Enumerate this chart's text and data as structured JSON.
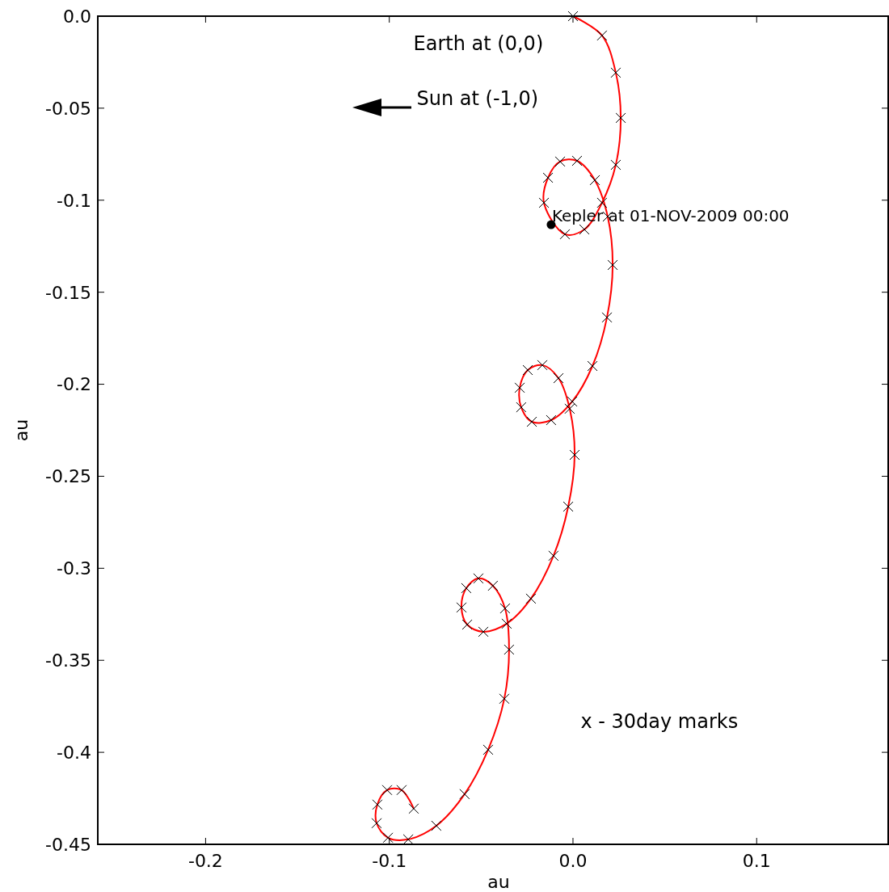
{
  "chart_data": {
    "type": "line",
    "xlabel": "au",
    "ylabel": "au",
    "xlim": [
      -0.2587,
      0.1716
    ],
    "ylim": [
      -0.45,
      0
    ],
    "xticks": [
      -0.2,
      -0.1,
      {
        "value": 0,
        "label": "0.0"
      },
      0.1
    ],
    "yticks": [
      {
        "value": 0,
        "label": "0.0"
      },
      -0.05,
      -0.1,
      -0.15,
      -0.2,
      -0.25,
      -0.3,
      -0.35,
      -0.4,
      -0.45
    ],
    "grid": false,
    "series": [
      {
        "color": "#ff0000",
        "marker": "none",
        "x": [
          0,
          0.0158,
          0.0233,
          0.026,
          0.0233,
          0.0158,
          0.0062,
          -0.0044,
          -0.0158,
          -0.0136,
          -0.007,
          0.0022,
          0.0119,
          0.0189,
          0.0216,
          0.0185,
          0.0106,
          -0.0004,
          -0.0119,
          -0.0224,
          -0.0282,
          -0.029,
          -0.0246,
          -0.0167,
          -0.0079,
          -0.0018,
          0.0009,
          -0.0026,
          -0.0106,
          -0.0229,
          -0.0361,
          -0.0488,
          -0.0576,
          -0.0607,
          -0.0581,
          -0.0515,
          -0.0436,
          -0.037,
          -0.0348,
          -0.0374,
          -0.0462,
          -0.059,
          -0.0744,
          -0.0897,
          -0.1007,
          -0.1069,
          -0.1065,
          -0.1012,
          -0.0933,
          -0.0867
        ],
        "values": [
          0,
          -0.0105,
          -0.0307,
          -0.0553,
          -0.0808,
          -0.1014,
          -0.1159,
          -0.1185,
          -0.1014,
          -0.0878,
          -0.079,
          -0.0786,
          -0.0891,
          -0.1089,
          -0.1352,
          -0.1637,
          -0.1901,
          -0.2094,
          -0.2195,
          -0.2204,
          -0.2125,
          -0.2019,
          -0.1923,
          -0.1896,
          -0.1967,
          -0.2133,
          -0.2384,
          -0.2665,
          -0.2932,
          -0.3165,
          -0.3301,
          -0.3345,
          -0.3306,
          -0.3213,
          -0.3108,
          -0.3055,
          -0.3095,
          -0.3218,
          -0.3442,
          -0.3709,
          -0.3986,
          -0.4227,
          -0.4399,
          -0.4473,
          -0.4464,
          -0.4385,
          -0.4284,
          -0.4205,
          -0.4205,
          -0.4306
        ]
      },
      {
        "type": "scatter",
        "color": "#000000",
        "marker": "cross",
        "x": [
          0,
          0.0158,
          0.0233,
          0.026,
          0.0233,
          0.0158,
          0.0062,
          -0.0044,
          -0.0158,
          -0.0136,
          -0.007,
          0.0022,
          0.0119,
          0.0189,
          0.0216,
          0.0185,
          0.0106,
          -0.0004,
          -0.0119,
          -0.0224,
          -0.0282,
          -0.029,
          -0.0246,
          -0.0167,
          -0.0079,
          -0.0018,
          0.0009,
          -0.0026,
          -0.0106,
          -0.0229,
          -0.0361,
          -0.0488,
          -0.0576,
          -0.0607,
          -0.0581,
          -0.0515,
          -0.0436,
          -0.037,
          -0.0348,
          -0.0374,
          -0.0462,
          -0.059,
          -0.0744,
          -0.0897,
          -0.1007,
          -0.1069,
          -0.1065,
          -0.1012,
          -0.0933,
          -0.0867
        ],
        "values": [
          0,
          -0.0105,
          -0.0307,
          -0.0553,
          -0.0808,
          -0.1014,
          -0.1159,
          -0.1185,
          -0.1014,
          -0.0878,
          -0.079,
          -0.0786,
          -0.0891,
          -0.1089,
          -0.1352,
          -0.1637,
          -0.1901,
          -0.2094,
          -0.2195,
          -0.2204,
          -0.2125,
          -0.2019,
          -0.1923,
          -0.1896,
          -0.1967,
          -0.2133,
          -0.2384,
          -0.2665,
          -0.2932,
          -0.3165,
          -0.3301,
          -0.3345,
          -0.3306,
          -0.3213,
          -0.3108,
          -0.3055,
          -0.3095,
          -0.3218,
          -0.3442,
          -0.3709,
          -0.3986,
          -0.4227,
          -0.4399,
          -0.4473,
          -0.4464,
          -0.4385,
          -0.4284,
          -0.4205,
          -0.4205,
          -0.4306
        ]
      },
      {
        "type": "scatter",
        "color": "#000000",
        "marker": "circle",
        "x": [
          -0.0119
        ],
        "values": [
          -0.1133
        ]
      }
    ],
    "annotations": [
      "Earth at (0,0)",
      "Sun at (-1,0)",
      "x - 30day marks",
      {
        "text": "Kepler at 01-NOV-2009 00:00",
        "x": -0.0119,
        "y": -0.1133
      }
    ]
  }
}
